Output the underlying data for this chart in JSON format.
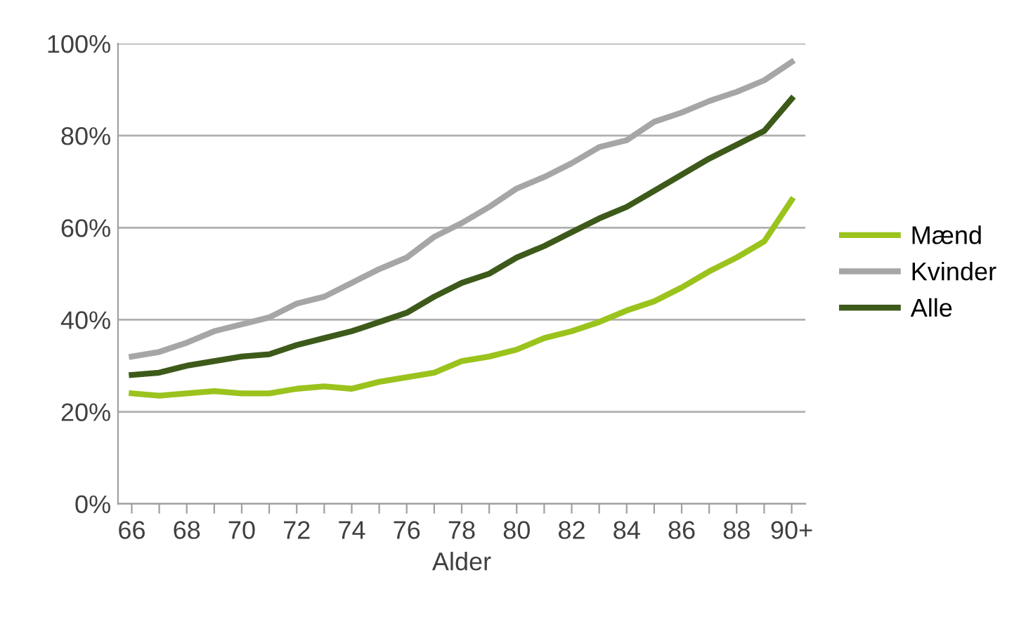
{
  "chart_data": {
    "type": "line",
    "xlabel": "Alder",
    "categories": [
      "66",
      null,
      "68",
      null,
      "70",
      null,
      "72",
      null,
      "74",
      null,
      "76",
      null,
      "78",
      null,
      "80",
      null,
      "82",
      null,
      "84",
      null,
      "86",
      null,
      "88",
      null,
      "90+"
    ],
    "series": [
      {
        "name": "Mænd",
        "color": "#9bc31d",
        "values": [
          24,
          23.5,
          24,
          24.5,
          24,
          24,
          25,
          25.5,
          25,
          26.5,
          27.5,
          28.5,
          31,
          32,
          33.5,
          36,
          37.5,
          39.5,
          42,
          44,
          47,
          50.5,
          53.5,
          57,
          66
        ]
      },
      {
        "name": "Kvinder",
        "color": "#a6a6a6",
        "values": [
          32,
          33,
          35,
          37.5,
          39,
          40.5,
          43.5,
          45,
          48,
          51,
          53.5,
          58,
          61,
          64.5,
          68.5,
          71,
          74,
          77.5,
          79,
          83,
          85,
          87.5,
          89.5,
          92,
          96
        ]
      },
      {
        "name": "Alle",
        "color": "#3d5a1a",
        "values": [
          28,
          28.5,
          30,
          31,
          32,
          32.5,
          34.5,
          36,
          37.5,
          39.5,
          41.5,
          45,
          48,
          50,
          53.5,
          56,
          59,
          62,
          64.5,
          68,
          71.5,
          75,
          78,
          81,
          88
        ]
      }
    ],
    "ylim": [
      0,
      100
    ],
    "yticks": [
      {
        "value": 0,
        "label": "0%"
      },
      {
        "value": 20,
        "label": "20%"
      },
      {
        "value": 40,
        "label": "40%"
      },
      {
        "value": 60,
        "label": "60%"
      },
      {
        "value": 80,
        "label": "80%"
      },
      {
        "value": 100,
        "label": "100%"
      }
    ],
    "grid": "y",
    "legend": "right",
    "marker": "none",
    "line_style": "solid"
  }
}
